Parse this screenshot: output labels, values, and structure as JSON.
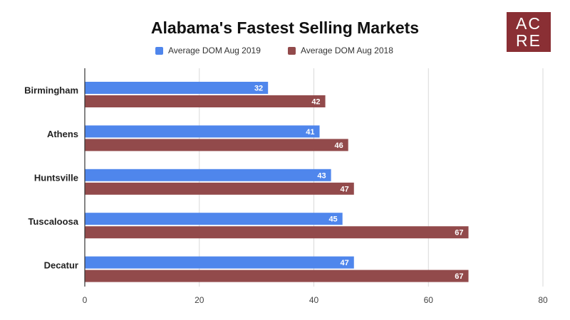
{
  "chart_data": {
    "type": "bar",
    "orientation": "horizontal",
    "title": "Alabama's Fastest Selling Markets",
    "categories": [
      "Birmingham",
      "Athens",
      "Huntsville",
      "Tuscaloosa",
      "Decatur"
    ],
    "series": [
      {
        "name": "Average DOM Aug 2019",
        "color": "#4f86ec",
        "values": [
          32,
          41,
          43,
          45,
          47
        ]
      },
      {
        "name": "Average DOM Aug 2018",
        "color": "#924a4b",
        "values": [
          42,
          46,
          47,
          67,
          67
        ]
      }
    ],
    "xlim": [
      0,
      80
    ],
    "xticks": [
      0,
      20,
      40,
      60,
      80
    ],
    "grid": true,
    "legend_position": "top-center",
    "data_labels": true
  },
  "logo": {
    "line1": "AC",
    "line2": "RE",
    "color": "#8a2f34"
  }
}
